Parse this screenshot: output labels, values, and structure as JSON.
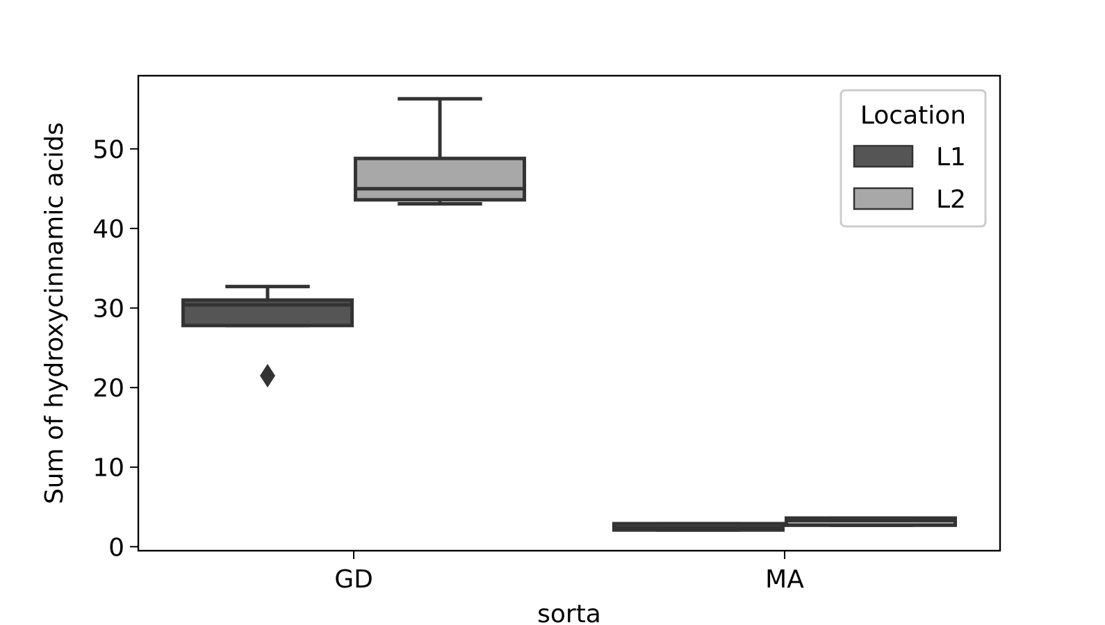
{
  "chart_data": {
    "type": "box",
    "xlabel": "sorta",
    "ylabel": "Sum of hydroxycinnamic acids",
    "categories": [
      "GD",
      "MA"
    ],
    "ylim": [
      -0.5,
      59.2
    ],
    "yticks": [
      0,
      10,
      20,
      30,
      40,
      50
    ],
    "grid": false,
    "legend": {
      "title": "Location",
      "position": "top-right"
    },
    "series": [
      {
        "name": "L1",
        "color": "#555555",
        "boxes": [
          {
            "category": "GD",
            "whisker_low": 27.8,
            "q1": 27.8,
            "median": 30.4,
            "q3": 31.0,
            "whisker_high": 32.7,
            "outliers": [
              21.5
            ]
          },
          {
            "category": "MA",
            "whisker_low": 2.1,
            "q1": 2.1,
            "median": 2.4,
            "q3": 2.9,
            "whisker_high": 2.9,
            "outliers": []
          }
        ]
      },
      {
        "name": "L2",
        "color": "#a8a8a8",
        "boxes": [
          {
            "category": "GD",
            "whisker_low": 43.1,
            "q1": 43.6,
            "median": 45.0,
            "q3": 48.8,
            "whisker_high": 56.3,
            "outliers": []
          },
          {
            "category": "MA",
            "whisker_low": 2.7,
            "q1": 2.7,
            "median": 3.3,
            "q3": 3.6,
            "whisker_high": 3.6,
            "outliers": []
          }
        ]
      }
    ]
  }
}
